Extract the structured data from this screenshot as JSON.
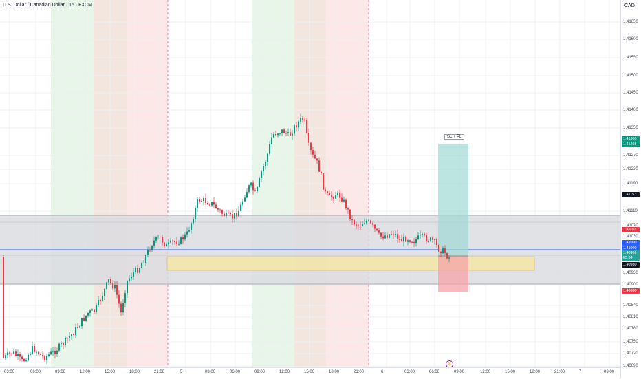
{
  "header": {
    "symbol_title": "U.S. Dollar / Canadian Dollar · 15 · FXCM",
    "currency": "CAD"
  },
  "price_axis": {
    "ticks": [
      "1.41650",
      "1.41600",
      "1.41550",
      "1.41500",
      "1.41450",
      "1.41400",
      "1.41350",
      "1.41270",
      "1.41230",
      "1.41190",
      "1.41110",
      "1.41070",
      "1.41030",
      "1.40930",
      "1.40900",
      "1.40840",
      "1.40810",
      "1.40780",
      "1.40750",
      "1.40720",
      "1.40690"
    ]
  },
  "time_axis": {
    "labels": [
      "03:00",
      "06:00",
      "09:00",
      "12:00",
      "15:00",
      "18:00",
      "21:00",
      "5",
      "03:00",
      "06:00",
      "09:00",
      "12:00",
      "15:00",
      "18:00",
      "21:00",
      "6",
      "03:00",
      "06:00",
      "09:00",
      "12:00",
      "15:00",
      "18:00",
      "21:00",
      "7",
      "03:00"
    ]
  },
  "price_tags": [
    {
      "text": "1.41300",
      "color": "#089981"
    },
    {
      "text": "1.41298",
      "color": "#089981"
    },
    {
      "text": "1.41157",
      "color": "#131722"
    },
    {
      "text": "1.41057",
      "color": "#f23645"
    },
    {
      "text": "1.41000",
      "color": "#2962ff"
    },
    {
      "text": "1.41000",
      "color": "#2962ff"
    },
    {
      "text": "1.40986",
      "color": "#26a69a"
    },
    {
      "text": "05:34",
      "color": "#26a69a"
    },
    {
      "text": "1.40980",
      "color": "#131722"
    },
    {
      "text": "1.40880",
      "color": "#f23645"
    }
  ],
  "position_tool": {
    "label": "SL + PL"
  },
  "event_icon": "lightning-icon",
  "colors": {
    "bull": "#089981",
    "bear": "#f23645",
    "horizontal_line": "#2962ff",
    "zone": "#d1d4dc",
    "yellow_zone": "#f5e6a6"
  }
}
